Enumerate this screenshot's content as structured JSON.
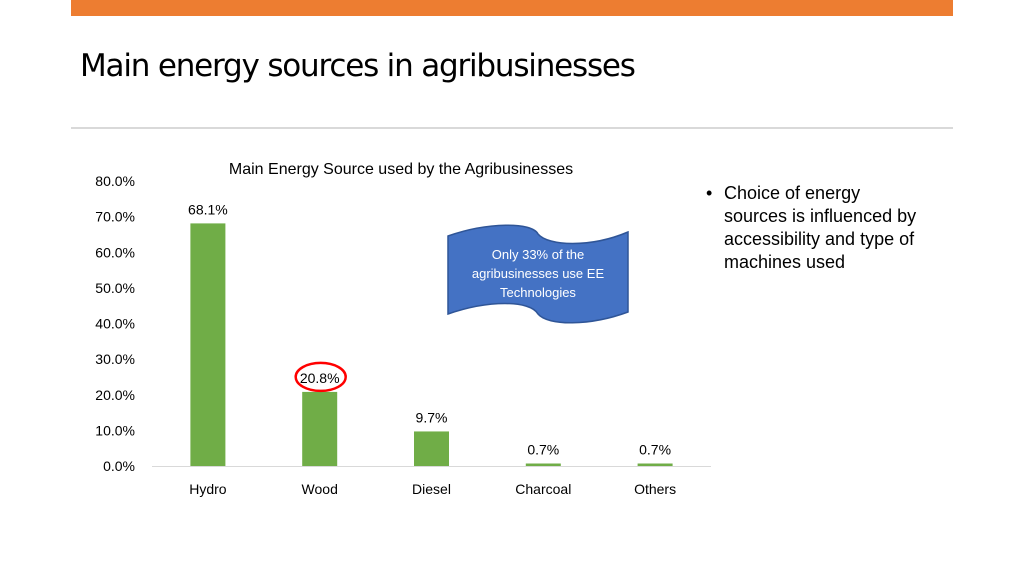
{
  "slide": {
    "title": "Main energy sources in agribusinesses",
    "bullets": [
      "Choice of energy sources is influenced by accessibility and type of machines used"
    ]
  },
  "colors": {
    "accent_bar": "#ED7D31",
    "bar_fill": "#70AD47",
    "callout_fill": "#4472C4",
    "highlight_circle": "#FF0000"
  },
  "chart_data": {
    "type": "bar",
    "title": "Main Energy Source used by the Agribusinesses",
    "categories": [
      "Hydro",
      "Wood",
      "Diesel",
      "Charcoal",
      "Others"
    ],
    "values": [
      68.1,
      20.8,
      9.7,
      0.7,
      0.7
    ],
    "data_labels": [
      "68.1%",
      "20.8%",
      "9.7%",
      "0.7%",
      "0.7%"
    ],
    "ylim": [
      0,
      80
    ],
    "yticks": [
      0,
      10,
      20,
      30,
      40,
      50,
      60,
      70,
      80
    ],
    "ytick_labels": [
      "0.0%",
      "10.0%",
      "20.0%",
      "30.0%",
      "40.0%",
      "50.0%",
      "60.0%",
      "70.0%",
      "80.0%"
    ],
    "xlabel": "",
    "ylabel": "",
    "grid": false,
    "highlighted_category": "Wood",
    "callout": "Only 33% of the agribusinesses use EE Technologies"
  }
}
